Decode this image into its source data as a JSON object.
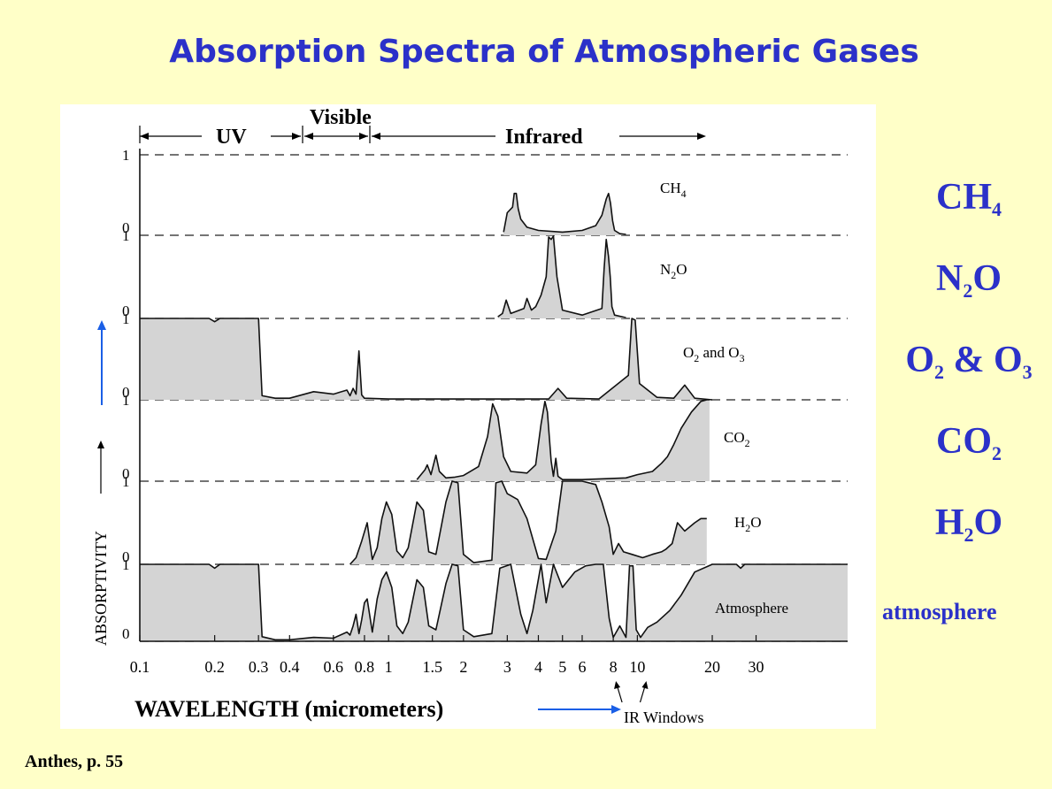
{
  "slide": {
    "title": "Absorption Spectra of Atmospheric Gases",
    "credit": "Anthes, p. 55",
    "right_labels": [
      {
        "base": "CH",
        "sub": "4",
        "tail": ""
      },
      {
        "base": "N",
        "sub": "2",
        "tail": "O"
      },
      {
        "base": "O",
        "sub": "2",
        "tail": " & O",
        "sub2": "3"
      },
      {
        "base": "CO",
        "sub": "2",
        "tail": ""
      },
      {
        "base": "H",
        "sub": "2",
        "tail": "O"
      }
    ],
    "atmosphere_label": "atmosphere",
    "accent_color": "#2b31c9",
    "arrow_color": "#1a5fe6"
  },
  "figure": {
    "region_labels": {
      "uv": "UV",
      "visible": "Visible",
      "infrared": "Infrared"
    },
    "y_axis_label": "ABSORPTIVITY",
    "x_axis_label": "WAVELENGTH (micrometers)",
    "ir_windows_label": "IR Windows",
    "panel_labels": [
      {
        "base": "CH",
        "sub": "4",
        "tail": ""
      },
      {
        "base": "N",
        "sub": "2",
        "tail": "O"
      },
      {
        "base": "O",
        "sub": "2",
        "tail": " and O",
        "sub2": "3"
      },
      {
        "base": "CO",
        "sub": "2",
        "tail": ""
      },
      {
        "base": "H",
        "sub": "2",
        "tail": "O"
      },
      {
        "base": "Atmosphere",
        "sub": "",
        "tail": ""
      }
    ]
  },
  "chart_data": {
    "type": "area",
    "title": "",
    "xlabel": "WAVELENGTH (micrometers)",
    "ylabel": "ABSORPTIVITY",
    "x_scale": "log",
    "xlim": [
      0.1,
      70
    ],
    "ylim": [
      0,
      1
    ],
    "x_ticks": [
      "0.1",
      "0.2",
      "0.3",
      "0.4",
      "0.6",
      "0.8",
      "1",
      "1.5",
      "2",
      "3",
      "4",
      "5",
      "6",
      "8",
      "10",
      "20",
      "30"
    ],
    "x_tick_values": [
      0.1,
      0.2,
      0.3,
      0.4,
      0.6,
      0.8,
      1,
      1.5,
      2,
      3,
      4,
      5,
      6,
      8,
      10,
      20,
      30
    ],
    "y_ticks": [
      "0",
      "1"
    ],
    "series": [
      {
        "name": "CH4",
        "x": [
          2.9,
          3.0,
          3.15,
          3.2,
          3.26,
          3.32,
          3.4,
          3.6,
          4.0,
          5.0,
          6.0,
          6.8,
          7.2,
          7.5,
          7.66,
          7.8,
          7.95,
          8.1,
          8.5,
          9.0
        ],
        "y": [
          0.04,
          0.28,
          0.35,
          0.52,
          0.52,
          0.33,
          0.2,
          0.1,
          0.06,
          0.04,
          0.06,
          0.12,
          0.25,
          0.45,
          0.52,
          0.4,
          0.18,
          0.06,
          0.02,
          0.01
        ]
      },
      {
        "name": "N2O",
        "x": [
          2.75,
          2.87,
          2.97,
          3.1,
          3.5,
          3.6,
          3.75,
          3.9,
          4.1,
          4.3,
          4.4,
          4.5,
          4.6,
          4.75,
          5.0,
          6.0,
          7.2,
          7.35,
          7.5,
          7.65,
          7.78,
          7.9,
          8.1,
          9.0
        ],
        "y": [
          0.02,
          0.06,
          0.22,
          0.06,
          0.12,
          0.24,
          0.1,
          0.14,
          0.28,
          0.5,
          0.98,
          0.95,
          0.99,
          0.5,
          0.1,
          0.04,
          0.12,
          0.6,
          0.95,
          0.75,
          0.5,
          0.14,
          0.04,
          0.01
        ]
      },
      {
        "name": "O2 and O3",
        "x": [
          0.1,
          0.19,
          0.2,
          0.21,
          0.3,
          0.31,
          0.35,
          0.4,
          0.5,
          0.6,
          0.68,
          0.7,
          0.72,
          0.74,
          0.76,
          0.78,
          0.8,
          1.0,
          3.0,
          4.4,
          4.8,
          5.2,
          7.0,
          9.2,
          9.5,
          9.8,
          10.2,
          12.0,
          14.0,
          15.5,
          17.0,
          20.0
        ],
        "y": [
          1.0,
          1.0,
          0.96,
          1.0,
          1.0,
          0.05,
          0.02,
          0.02,
          0.1,
          0.07,
          0.12,
          0.05,
          0.14,
          0.07,
          0.6,
          0.06,
          0.02,
          0.01,
          0.01,
          0.01,
          0.14,
          0.02,
          0.01,
          0.3,
          1.0,
          0.98,
          0.2,
          0.03,
          0.02,
          0.18,
          0.02,
          0.0
        ]
      },
      {
        "name": "CO2",
        "x": [
          1.3,
          1.4,
          1.43,
          1.48,
          1.55,
          1.6,
          1.7,
          1.85,
          2.0,
          2.3,
          2.5,
          2.62,
          2.75,
          2.9,
          3.1,
          3.6,
          3.9,
          4.1,
          4.25,
          4.35,
          4.5,
          4.6,
          4.7,
          4.8,
          5.0,
          6.0,
          7.5,
          9.0,
          10.0,
          11.5,
          12.5,
          13.2,
          14.0,
          15.0,
          16.5,
          18.0,
          19.0,
          19.5
        ],
        "y": [
          0.02,
          0.14,
          0.2,
          0.08,
          0.32,
          0.12,
          0.04,
          0.05,
          0.07,
          0.18,
          0.55,
          0.95,
          0.8,
          0.3,
          0.12,
          0.1,
          0.2,
          0.7,
          0.98,
          0.85,
          0.25,
          0.06,
          0.28,
          0.06,
          0.02,
          0.02,
          0.03,
          0.04,
          0.08,
          0.12,
          0.22,
          0.3,
          0.45,
          0.65,
          0.85,
          0.98,
          1.0,
          1.0
        ]
      },
      {
        "name": "H2O",
        "x": [
          0.7,
          0.74,
          0.78,
          0.82,
          0.86,
          0.9,
          0.94,
          0.98,
          1.03,
          1.08,
          1.14,
          1.2,
          1.3,
          1.38,
          1.45,
          1.55,
          1.7,
          1.8,
          1.9,
          2.0,
          2.2,
          2.6,
          2.7,
          2.85,
          3.0,
          3.3,
          3.6,
          4.0,
          4.3,
          4.7,
          5.0,
          5.4,
          6.0,
          6.8,
          7.2,
          7.7,
          8.0,
          8.4,
          8.8,
          9.5,
          10.5,
          11.5,
          12.5,
          13.0,
          13.8,
          14.5,
          15.5,
          17.0,
          18.0,
          19.0
        ],
        "y": [
          0.0,
          0.08,
          0.28,
          0.5,
          0.06,
          0.2,
          0.55,
          0.75,
          0.6,
          0.16,
          0.08,
          0.2,
          0.75,
          0.65,
          0.15,
          0.12,
          0.75,
          1.0,
          0.98,
          0.12,
          0.02,
          0.05,
          0.98,
          1.0,
          0.85,
          0.78,
          0.55,
          0.07,
          0.06,
          0.4,
          1.0,
          1.0,
          1.0,
          0.96,
          0.75,
          0.45,
          0.12,
          0.25,
          0.15,
          0.12,
          0.08,
          0.12,
          0.15,
          0.18,
          0.25,
          0.5,
          0.4,
          0.5,
          0.55,
          0.55
        ]
      },
      {
        "name": "Atmosphere",
        "x": [
          0.1,
          0.19,
          0.2,
          0.21,
          0.3,
          0.31,
          0.35,
          0.4,
          0.5,
          0.6,
          0.68,
          0.7,
          0.72,
          0.74,
          0.76,
          0.78,
          0.8,
          0.82,
          0.86,
          0.9,
          0.94,
          0.98,
          1.03,
          1.08,
          1.14,
          1.2,
          1.3,
          1.38,
          1.45,
          1.55,
          1.7,
          1.8,
          1.9,
          2.0,
          2.2,
          2.6,
          2.8,
          3.1,
          3.4,
          3.6,
          3.8,
          4.1,
          4.3,
          4.6,
          5.0,
          5.6,
          6.2,
          6.8,
          7.3,
          7.7,
          8.0,
          8.5,
          9.0,
          9.3,
          9.6,
          9.9,
          10.3,
          11.0,
          12.0,
          13.5,
          15.0,
          17.0,
          20.0,
          25.0,
          26.0,
          27.0,
          30.0,
          70.0
        ],
        "y": [
          1.0,
          1.0,
          0.95,
          1.0,
          1.0,
          0.06,
          0.02,
          0.02,
          0.05,
          0.04,
          0.12,
          0.08,
          0.2,
          0.35,
          0.1,
          0.28,
          0.5,
          0.55,
          0.12,
          0.55,
          0.8,
          0.9,
          0.7,
          0.2,
          0.1,
          0.25,
          0.8,
          0.7,
          0.2,
          0.15,
          0.75,
          1.0,
          0.98,
          0.15,
          0.06,
          0.1,
          0.95,
          1.0,
          0.35,
          0.1,
          0.4,
          1.0,
          0.5,
          1.0,
          0.7,
          0.9,
          0.98,
          1.0,
          1.0,
          0.3,
          0.05,
          0.2,
          0.05,
          0.98,
          0.98,
          0.15,
          0.05,
          0.18,
          0.25,
          0.4,
          0.6,
          0.9,
          1.0,
          1.0,
          0.95,
          1.0,
          1.0,
          1.0
        ]
      }
    ],
    "shaded": true
  }
}
